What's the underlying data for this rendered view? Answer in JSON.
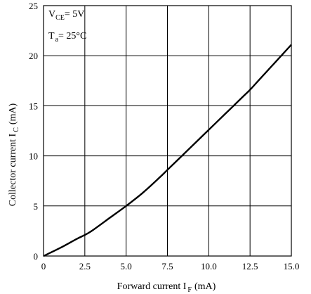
{
  "chart_data": {
    "type": "line",
    "title": "",
    "xlabel": {
      "main": "Forward current I",
      "sub": "F",
      "unit": "(mA)"
    },
    "ylabel": {
      "main": "Collector current I",
      "sub": "C",
      "unit": "(mA)"
    },
    "xlim": [
      0,
      15
    ],
    "ylim": [
      0,
      25
    ],
    "xticks": [
      "0",
      "2.5",
      "5.0",
      "7.5",
      "10.0",
      "12.5",
      "15.0"
    ],
    "yticks": [
      "0",
      "5",
      "10",
      "15",
      "20",
      "25"
    ],
    "grid": true,
    "legend": {
      "placement": "top-left",
      "line1": {
        "main": "V",
        "sub": "CE",
        "value": "= 5V"
      },
      "line2": {
        "main": "T",
        "sub": "a",
        "value": "= 25°C"
      }
    },
    "series": [
      {
        "x": [
          0,
          1,
          2,
          2.5,
          3,
          4,
          5,
          6,
          7,
          7.5,
          8,
          9,
          10,
          11,
          12,
          12.5,
          13,
          14,
          15
        ],
        "y": [
          0,
          0.8,
          1.7,
          2.1,
          2.6,
          3.8,
          5.0,
          6.3,
          7.8,
          8.6,
          9.4,
          11.0,
          12.6,
          14.2,
          15.8,
          16.6,
          17.5,
          19.3,
          21.1
        ]
      }
    ]
  }
}
